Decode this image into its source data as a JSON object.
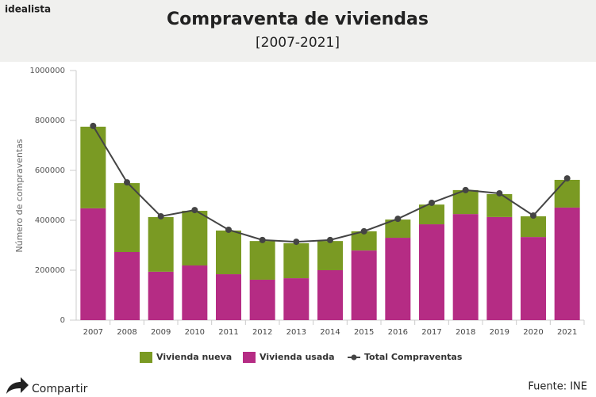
{
  "brand": "idealista",
  "share": "Compartir",
  "source": "Fuente: INE",
  "chart_data": {
    "type": "bar",
    "title": "Compraventa de viviendas",
    "subtitle": "[2007-2021]",
    "ylabel": "Número de compraventas",
    "categories": [
      "2007",
      "2008",
      "2009",
      "2010",
      "2011",
      "2012",
      "2013",
      "2014",
      "2015",
      "2016",
      "2017",
      "2018",
      "2019",
      "2020",
      "2021"
    ],
    "series": [
      {
        "name": "Vivienda nueva",
        "color": "#7a9a23",
        "type": "bar",
        "values": [
          327000,
          276000,
          219000,
          219000,
          175000,
          155000,
          140000,
          117000,
          77000,
          73000,
          79000,
          96000,
          92000,
          83000,
          111000
        ]
      },
      {
        "name": "Vivienda usada",
        "color": "#b52c84",
        "type": "bar",
        "values": [
          448000,
          273000,
          194000,
          219000,
          184000,
          162000,
          168000,
          200000,
          279000,
          330000,
          384000,
          425000,
          413000,
          333000,
          451000
        ]
      },
      {
        "name": "Total Compraventas",
        "color": "#444444",
        "type": "line",
        "values": [
          778000,
          552000,
          416000,
          441000,
          362000,
          321000,
          314000,
          321000,
          356000,
          406000,
          470000,
          521000,
          508000,
          419000,
          568000
        ]
      }
    ],
    "ylim": [
      0,
      1000000
    ],
    "yticks": [
      0,
      200000,
      400000,
      600000,
      800000,
      1000000
    ]
  }
}
